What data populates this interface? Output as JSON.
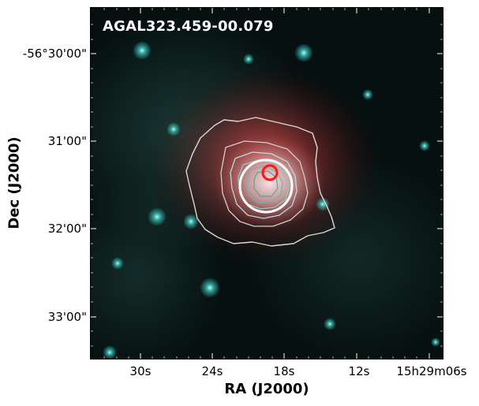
{
  "image": {
    "source_label": "AGAL323.459-00.079",
    "colors": {
      "background": "#050a09",
      "cyan_emission": "#38c8c0",
      "red_emission": "#c83a3a",
      "contours": "#dcdcdc",
      "inner_contours": "#9fd8d0",
      "beam_circle": "#ffffff",
      "source_marker": "#ff1a1a"
    }
  },
  "axes": {
    "xlabel": "RA (J2000)",
    "ylabel": "Dec (J2000)",
    "xticks": [
      "30s",
      "24s",
      "18s",
      "12s",
      "15h29m06s"
    ],
    "yticks": [
      "-56°30'00\"",
      "31'00\"",
      "32'00\"",
      "33'00\""
    ]
  }
}
